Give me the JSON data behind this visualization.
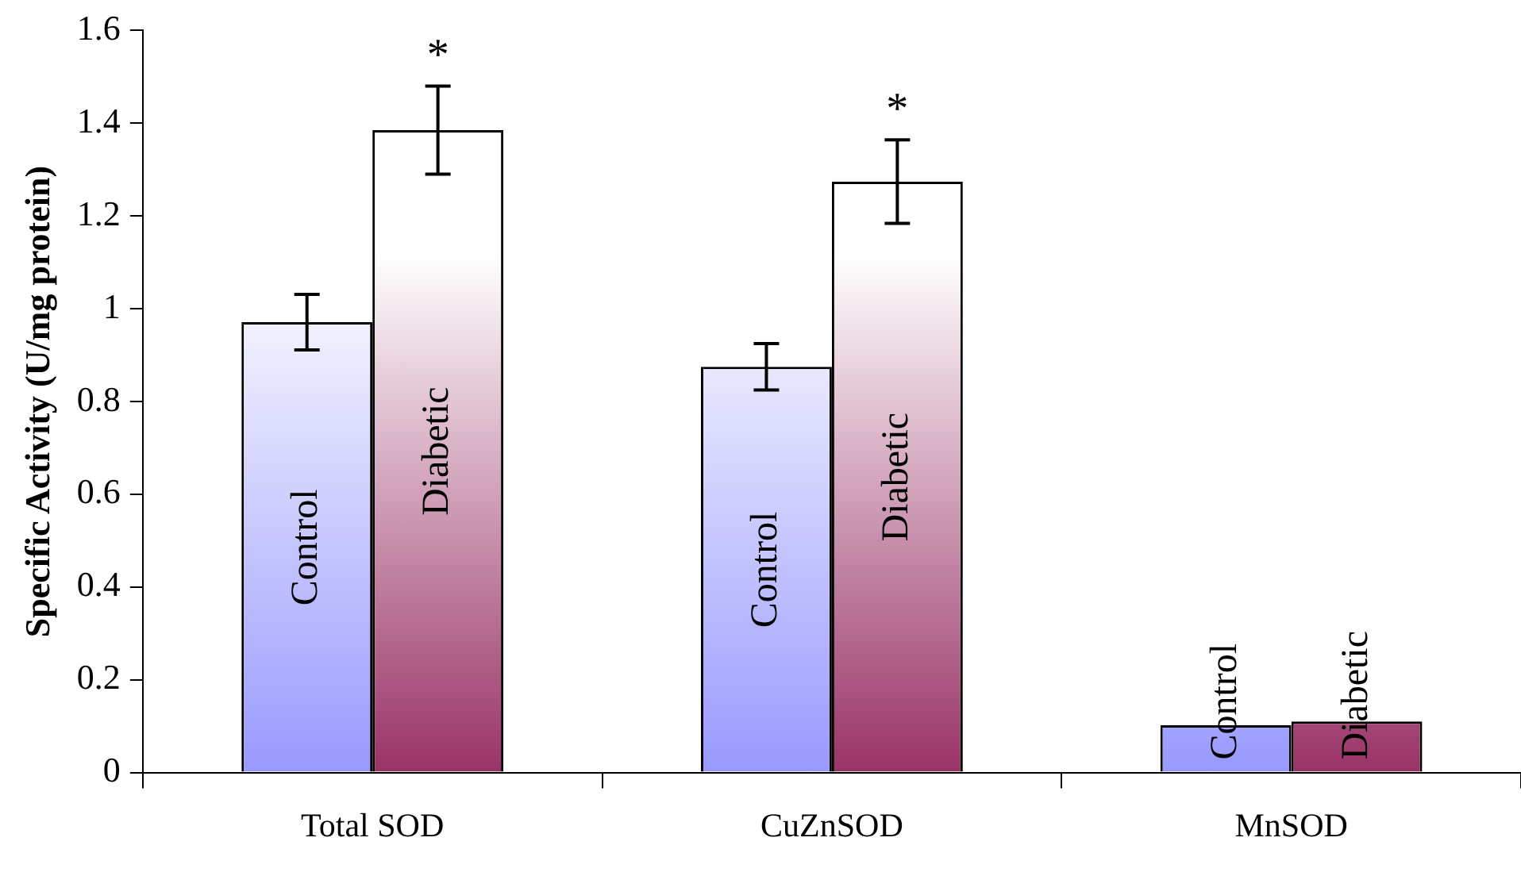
{
  "chart_data": {
    "type": "bar",
    "ylabel": "Specific Activity (U/mg protein)",
    "categories": [
      "Total SOD",
      "CuZnSOD",
      "MnSOD"
    ],
    "series": [
      {
        "name": "Control",
        "color": "#9999ff",
        "values": [
          0.971,
          0.875,
          0.102
        ],
        "errors": [
          0.06,
          0.05,
          null
        ]
      },
      {
        "name": "Diabetic",
        "color": "#993366",
        "values": [
          1.385,
          1.274,
          0.11
        ],
        "errors": [
          0.095,
          0.09,
          null
        ]
      }
    ],
    "ylim": [
      0,
      1.6
    ],
    "yticks": [
      0,
      0.2,
      0.4,
      0.6,
      0.8,
      1,
      1.2,
      1.4,
      1.6
    ],
    "grid": false,
    "legend": false,
    "annotations": [
      "*",
      "*"
    ]
  }
}
